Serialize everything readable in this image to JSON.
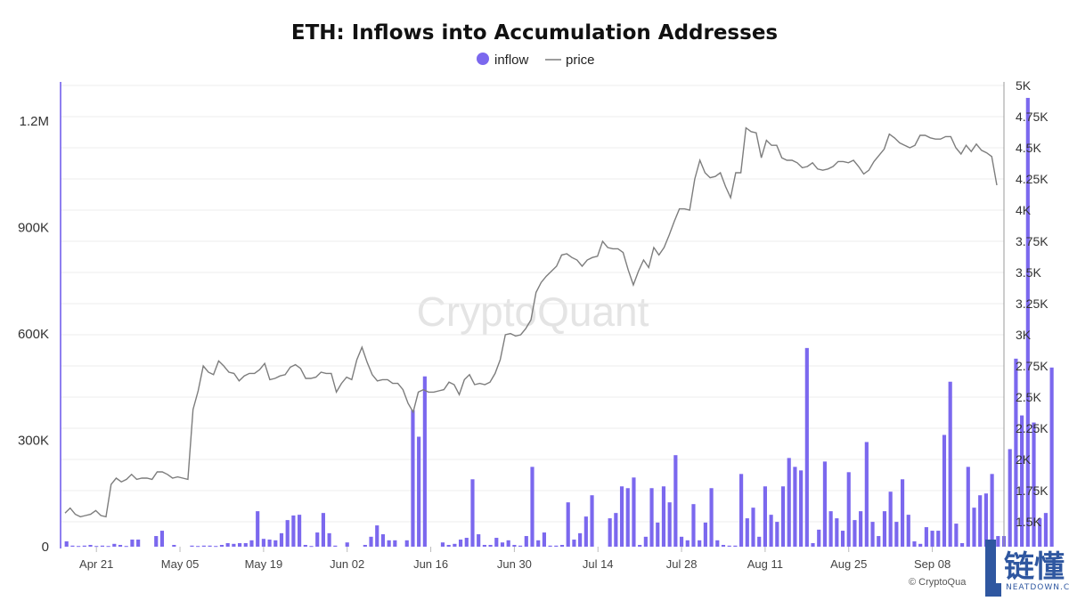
{
  "colors": {
    "inflow": "#7b68ee",
    "price": "#7d7d7d",
    "grid": "#ececec",
    "axis_left": "#8e7ff0",
    "axis_right": "#999999",
    "logo": "#2f57a0"
  },
  "chart_data": {
    "type": "bar",
    "title": "ETH: Inflows into Accumulation Addresses",
    "legend": {
      "placement": "top",
      "entries": [
        {
          "name": "inflow",
          "marker": "dot"
        },
        {
          "name": "price",
          "marker": "line"
        }
      ]
    },
    "x_ticks": [
      "Apr 21",
      "May 05",
      "May 19",
      "Jun 02",
      "Jun 16",
      "Jun 30",
      "Jul 14",
      "Jul 28",
      "Aug 11",
      "Aug 25",
      "Sep 08"
    ],
    "x_range_days": [
      0,
      158
    ],
    "x_tick_positions": [
      6,
      20,
      34,
      48,
      62,
      76,
      90,
      104,
      118,
      132,
      146
    ],
    "ylim_left": [
      0,
      1300000
    ],
    "left_ticks": [
      {
        "v": 0,
        "label": "0"
      },
      {
        "v": 300000,
        "label": "300K"
      },
      {
        "v": 600000,
        "label": "600K"
      },
      {
        "v": 900000,
        "label": "900K"
      },
      {
        "v": 1200000,
        "label": "1.2M"
      }
    ],
    "ylim_right": [
      1300,
      5000
    ],
    "right_ticks": [
      {
        "v": 1500,
        "label": "1.5K"
      },
      {
        "v": 1750,
        "label": "1.75K"
      },
      {
        "v": 2000,
        "label": "2K"
      },
      {
        "v": 2250,
        "label": "2.25K"
      },
      {
        "v": 2500,
        "label": "2.5K"
      },
      {
        "v": 2750,
        "label": "2.75K"
      },
      {
        "v": 3000,
        "label": "3K"
      },
      {
        "v": 3250,
        "label": "3.25K"
      },
      {
        "v": 3500,
        "label": "3.5K"
      },
      {
        "v": 3750,
        "label": "3.75K"
      },
      {
        "v": 4000,
        "label": "4K"
      },
      {
        "v": 4250,
        "label": "4.25K"
      },
      {
        "v": 4500,
        "label": "4.5K"
      },
      {
        "v": 4750,
        "label": "4.75K"
      },
      {
        "v": 5000,
        "label": "5K"
      }
    ],
    "grid": true,
    "series": [
      {
        "name": "inflow",
        "type": "bar",
        "axis": "left",
        "values": [
          15000,
          3000,
          2000,
          3000,
          5000,
          2000,
          3000,
          2000,
          8000,
          5000,
          2000,
          20000,
          20000,
          0,
          0,
          30000,
          45000,
          0,
          5000,
          0,
          0,
          3000,
          2000,
          3000,
          3000,
          2000,
          5000,
          10000,
          8000,
          10000,
          10000,
          18000,
          100000,
          22000,
          20000,
          18000,
          38000,
          75000,
          88000,
          90000,
          5000,
          2000,
          40000,
          95000,
          38000,
          3000,
          0,
          12000,
          0,
          0,
          5000,
          28000,
          60000,
          35000,
          18000,
          18000,
          0,
          18000,
          385000,
          310000,
          480000,
          0,
          0,
          12000,
          5000,
          8000,
          20000,
          25000,
          190000,
          35000,
          5000,
          5000,
          25000,
          12000,
          18000,
          5000,
          3000,
          30000,
          225000,
          18000,
          40000,
          3000,
          3000,
          5000,
          125000,
          20000,
          38000,
          85000,
          145000,
          0,
          0,
          80000,
          95000,
          170000,
          165000,
          195000,
          5000,
          28000,
          165000,
          68000,
          170000,
          125000,
          258000,
          28000,
          18000,
          120000,
          18000,
          68000,
          165000,
          18000,
          5000,
          3000,
          3000,
          205000,
          80000,
          110000,
          28000,
          170000,
          90000,
          70000,
          170000,
          250000,
          225000,
          215000,
          560000,
          10000,
          48000,
          240000,
          100000,
          80000,
          45000,
          210000,
          75000,
          100000,
          295000,
          70000,
          30000,
          100000,
          155000,
          70000,
          190000,
          90000,
          15000,
          8000,
          55000,
          45000,
          45000,
          315000,
          465000,
          65000,
          10000,
          225000,
          110000,
          145000,
          150000,
          205000,
          30000,
          30000,
          275000,
          530000,
          370000,
          1265000,
          350000,
          80000,
          95000,
          505000
        ]
      },
      {
        "name": "price",
        "type": "line",
        "axis": "right",
        "values": [
          1570,
          1610,
          1560,
          1540,
          1550,
          1560,
          1590,
          1550,
          1540,
          1800,
          1850,
          1820,
          1840,
          1880,
          1840,
          1850,
          1850,
          1840,
          1900,
          1900,
          1880,
          1850,
          1860,
          1850,
          1840,
          2400,
          2550,
          2750,
          2700,
          2680,
          2790,
          2750,
          2700,
          2690,
          2630,
          2670,
          2690,
          2690,
          2720,
          2770,
          2640,
          2650,
          2670,
          2680,
          2740,
          2760,
          2730,
          2650,
          2650,
          2660,
          2700,
          2690,
          2690,
          2540,
          2610,
          2660,
          2640,
          2800,
          2900,
          2780,
          2680,
          2630,
          2640,
          2640,
          2610,
          2610,
          2560,
          2450,
          2380,
          2540,
          2560,
          2540,
          2540,
          2550,
          2560,
          2620,
          2600,
          2520,
          2640,
          2680,
          2600,
          2610,
          2600,
          2620,
          2690,
          2800,
          3000,
          3010,
          2990,
          3000,
          3050,
          3120,
          3340,
          3420,
          3470,
          3510,
          3550,
          3640,
          3650,
          3620,
          3600,
          3550,
          3600,
          3620,
          3630,
          3750,
          3700,
          3690,
          3690,
          3660,
          3520,
          3400,
          3510,
          3600,
          3540,
          3700,
          3640,
          3700,
          3800,
          3910,
          4010,
          4010,
          4000,
          4250,
          4400,
          4300,
          4260,
          4270,
          4300,
          4190,
          4100,
          4300,
          4300,
          4660,
          4630,
          4620,
          4420,
          4560,
          4520,
          4520,
          4420,
          4400,
          4400,
          4380,
          4340,
          4350,
          4380,
          4330,
          4320,
          4330,
          4350,
          4390,
          4390,
          4380,
          4400,
          4350,
          4290,
          4320,
          4390,
          4440,
          4490,
          4610,
          4580,
          4540,
          4520,
          4500,
          4520,
          4600,
          4600,
          4580,
          4570,
          4570,
          4590,
          4590,
          4500,
          4450,
          4520,
          4470,
          4530,
          4480,
          4460,
          4430,
          4200
        ]
      }
    ]
  },
  "watermark": "CryptoQuant",
  "credit": "© CryptoQua",
  "logo": {
    "cn": "链懂",
    "en": "NEATDOWN.COM"
  }
}
